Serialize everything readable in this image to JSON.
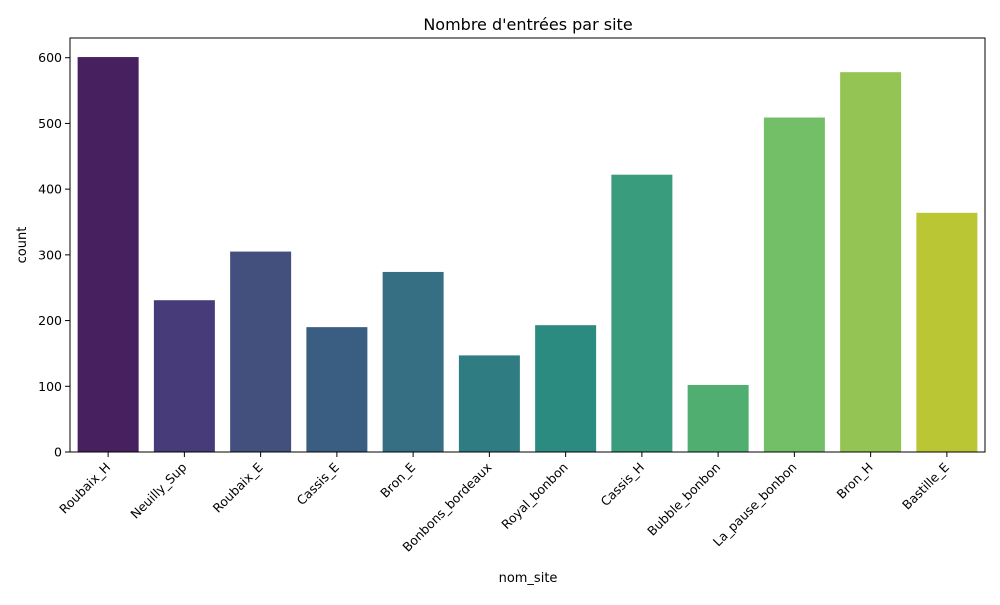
{
  "chart_data": {
    "type": "bar",
    "title": "Nombre d'entrées par site",
    "xlabel": "nom_site",
    "ylabel": "count",
    "ylim": [
      0,
      630
    ],
    "yticks": [
      0,
      100,
      200,
      300,
      400,
      500,
      600
    ],
    "categories": [
      "Roubaix_H",
      "Neuilly_Sup",
      "Roubaix_E",
      "Cassis_E",
      "Bron_E",
      "Bonbons_bordeaux",
      "Royal_bonbon",
      "Cassis_H",
      "Bubble_bonbon",
      "La_pause_bonbon",
      "Bron_H",
      "Bastille_E"
    ],
    "values": [
      601,
      231,
      305,
      190,
      274,
      147,
      193,
      422,
      102,
      509,
      578,
      364
    ],
    "colors": [
      "#46205f",
      "#483b79",
      "#43507d",
      "#3a5e82",
      "#366e83",
      "#2f7c82",
      "#2c8b81",
      "#399c7d",
      "#50ae71",
      "#72bf67",
      "#94c453",
      "#bac633"
    ],
    "grid": false,
    "legend": "none"
  }
}
